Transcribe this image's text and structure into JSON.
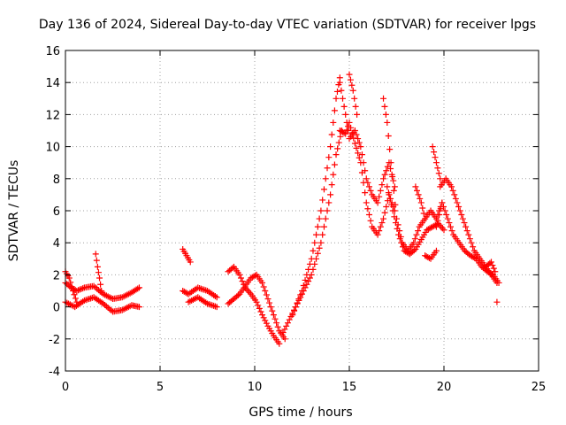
{
  "chart_data": {
    "type": "scatter",
    "title": "Day 136 of 2024, Sidereal Day-to-day VTEC variation (SDTVAR) for receiver lpgs",
    "xlabel": "GPS time / hours",
    "ylabel": "SDTVAR / TECUs",
    "xlim": [
      0,
      25
    ],
    "ylim": [
      -4,
      16
    ],
    "xticks": [
      "0",
      "5",
      "10",
      "15",
      "20",
      "25"
    ],
    "yticks": [
      "-4",
      "-2",
      "0",
      "2",
      "4",
      "6",
      "8",
      "10",
      "12",
      "14",
      "16"
    ],
    "grid": true,
    "marker": "+",
    "series": [
      {
        "name": "SDTVAR",
        "color": "#ff0000",
        "segments": [
          {
            "x": [
              0.0,
              0.3,
              0.6,
              1.0,
              1.5,
              2.0,
              2.5,
              3.0,
              3.5,
              3.9
            ],
            "y": [
              1.5,
              1.2,
              1.0,
              1.2,
              1.3,
              0.8,
              0.5,
              0.6,
              0.9,
              1.2
            ]
          },
          {
            "x": [
              0.0,
              0.5,
              1.0,
              1.5,
              2.0,
              2.5,
              3.0,
              3.5,
              3.9
            ],
            "y": [
              0.3,
              0.0,
              0.4,
              0.6,
              0.2,
              -0.3,
              -0.2,
              0.1,
              0.0
            ]
          },
          {
            "x": [
              0.0,
              0.2,
              0.4,
              0.6
            ],
            "y": [
              2.2,
              1.8,
              1.0,
              0.3
            ]
          },
          {
            "x": [
              1.6,
              1.7,
              1.8,
              1.9
            ],
            "y": [
              3.3,
              2.5,
              1.8,
              1.0
            ]
          },
          {
            "x": [
              6.2,
              6.4,
              6.6
            ],
            "y": [
              3.6,
              3.2,
              2.8
            ]
          },
          {
            "x": [
              6.2,
              6.5,
              7.0,
              7.5,
              8.0
            ],
            "y": [
              1.0,
              0.8,
              1.2,
              1.0,
              0.6
            ]
          },
          {
            "x": [
              6.5,
              7.0,
              7.5,
              8.0
            ],
            "y": [
              0.3,
              0.6,
              0.2,
              0.0
            ]
          },
          {
            "x": [
              8.6,
              8.9,
              9.2,
              9.5,
              9.8,
              10.1,
              10.4,
              10.7,
              11.0,
              11.3
            ],
            "y": [
              2.2,
              2.5,
              2.0,
              1.2,
              0.8,
              0.3,
              -0.5,
              -1.2,
              -1.8,
              -2.3
            ]
          },
          {
            "x": [
              8.6,
              8.9,
              9.2,
              9.5,
              9.8,
              10.1,
              10.4,
              10.7,
              11.0,
              11.3,
              11.6
            ],
            "y": [
              0.2,
              0.5,
              0.8,
              1.3,
              1.8,
              2.0,
              1.5,
              0.5,
              -0.5,
              -1.5,
              -2.0
            ]
          },
          {
            "x": [
              11.5,
              12.0,
              12.5,
              13.0,
              13.5,
              14.0,
              14.3,
              14.6
            ],
            "y": [
              -1.6,
              -0.4,
              0.8,
              2.0,
              4.0,
              7.0,
              9.5,
              11.0
            ]
          },
          {
            "x": [
              12.0,
              12.5,
              13.0,
              13.5,
              14.0,
              14.3,
              14.5
            ],
            "y": [
              -0.5,
              1.0,
              3.0,
              6.0,
              10.0,
              13.0,
              14.3
            ]
          },
          {
            "x": [
              14.5,
              14.8,
              15.0,
              15.3,
              15.6,
              15.9,
              16.2,
              16.5,
              16.8,
              17.1,
              17.4
            ],
            "y": [
              14.0,
              12.0,
              10.5,
              11.0,
              10.0,
              8.0,
              7.0,
              6.5,
              8.0,
              9.0,
              7.5
            ]
          },
          {
            "x": [
              14.5,
              14.8,
              15.0,
              15.3,
              15.6,
              15.9,
              16.2,
              16.5,
              16.8,
              17.1,
              17.4
            ],
            "y": [
              11.0,
              10.8,
              11.5,
              10.2,
              9.0,
              6.5,
              5.0,
              4.5,
              5.5,
              7.0,
              6.0
            ]
          },
          {
            "x": [
              15.0,
              15.2,
              15.4
            ],
            "y": [
              14.5,
              13.5,
              12.0
            ]
          },
          {
            "x": [
              16.8,
              17.0,
              17.2,
              17.5,
              17.8,
              18.1,
              18.4,
              18.7,
              19.0,
              19.3,
              19.6,
              19.9
            ],
            "y": [
              13.0,
              11.5,
              9.0,
              5.5,
              4.0,
              3.5,
              4.0,
              5.0,
              5.5,
              6.0,
              5.5,
              6.5
            ]
          },
          {
            "x": [
              17.0,
              17.3,
              17.6,
              17.9,
              18.2,
              18.5,
              18.8,
              19.1,
              19.4,
              19.7,
              20.0
            ],
            "y": [
              7.5,
              6.0,
              4.5,
              3.5,
              3.3,
              3.6,
              4.2,
              4.8,
              5.0,
              5.2,
              4.8
            ]
          },
          {
            "x": [
              18.5,
              18.8,
              19.0
            ],
            "y": [
              7.5,
              6.5,
              5.5
            ]
          },
          {
            "x": [
              19.0,
              19.3,
              19.6
            ],
            "y": [
              3.2,
              3.0,
              3.5
            ]
          },
          {
            "x": [
              19.4,
              19.6,
              19.8
            ],
            "y": [
              10.0,
              9.0,
              8.0
            ]
          },
          {
            "x": [
              19.8,
              20.1,
              20.4,
              20.7,
              21.0,
              21.3,
              21.6,
              21.9,
              22.2,
              22.5,
              22.8
            ],
            "y": [
              7.5,
              8.0,
              7.5,
              6.5,
              5.5,
              4.5,
              3.5,
              3.0,
              2.5,
              2.0,
              1.5
            ]
          },
          {
            "x": [
              19.6,
              19.9,
              20.2,
              20.5,
              20.8,
              21.1,
              21.4,
              21.7,
              22.0,
              22.3,
              22.6,
              22.9
            ],
            "y": [
              5.0,
              6.5,
              5.5,
              4.5,
              4.0,
              3.5,
              3.2,
              3.0,
              2.5,
              2.2,
              2.0,
              1.5
            ]
          },
          {
            "x": [
              22.2,
              22.5,
              22.7
            ],
            "y": [
              2.5,
              2.8,
              2.2
            ]
          },
          {
            "x": [
              22.8
            ],
            "y": [
              0.3
            ]
          }
        ]
      }
    ]
  }
}
